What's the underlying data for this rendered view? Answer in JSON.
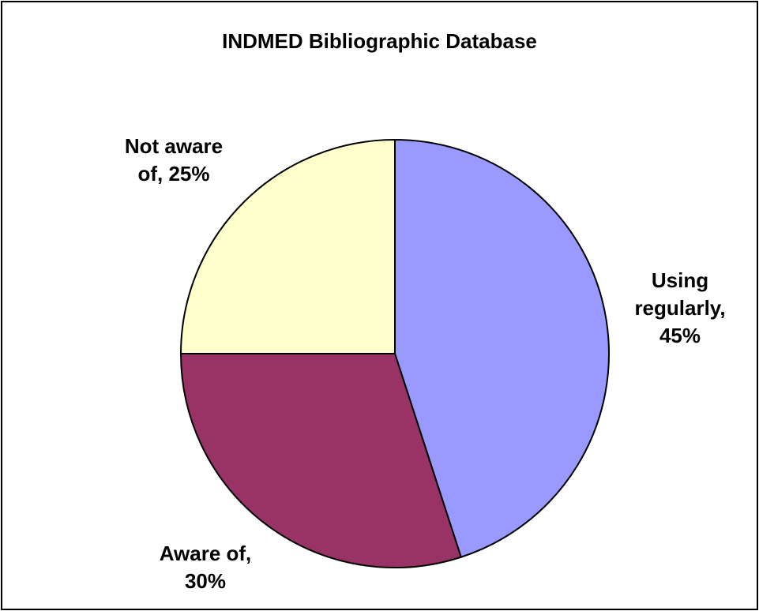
{
  "chart_data": {
    "type": "pie",
    "title": "INDMED Bibliographic Database",
    "slices": [
      {
        "name": "Using regularly",
        "value": 45,
        "color": "#9999FF",
        "label_lines": [
          "Using",
          "regularly,",
          "45%"
        ]
      },
      {
        "name": "Aware of",
        "value": 30,
        "color": "#993366",
        "label_lines": [
          "Aware of,",
          "30%"
        ]
      },
      {
        "name": "Not aware of",
        "value": 25,
        "color": "#FFFFCC",
        "label_lines": [
          "Not aware",
          "of, 25%"
        ]
      }
    ],
    "start": "12 o'clock",
    "direction": "clockwise",
    "legend": "none"
  }
}
